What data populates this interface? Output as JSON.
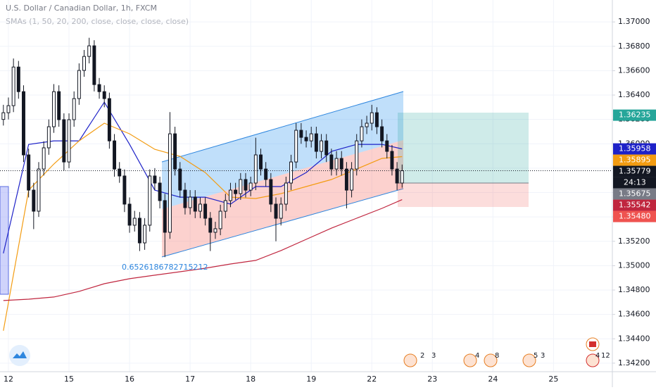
{
  "chart_data": {
    "type": "candlestick",
    "title": "U.S. Dollar / Canadian Dollar, 1h, FXCM",
    "subtitle": "SMAs (1, 50, 20, 200, close, close, close, close)",
    "x": [
      0,
      1,
      2,
      3,
      4,
      5,
      6,
      7,
      8,
      9,
      10,
      11,
      12,
      13,
      14,
      15,
      16,
      17,
      18,
      19,
      20,
      21,
      22,
      23,
      24,
      25,
      26,
      27,
      28,
      29,
      30,
      31,
      32,
      33,
      34,
      35,
      36,
      37,
      38,
      39,
      40,
      41,
      42,
      43,
      44,
      45,
      46,
      47,
      48,
      49,
      50,
      51,
      52,
      53,
      54,
      55,
      56,
      57,
      58,
      59,
      60,
      61,
      62,
      63,
      64,
      65,
      66,
      67,
      68,
      69,
      70,
      71,
      72,
      73,
      74,
      75,
      76,
      77,
      78,
      79
    ],
    "open": [
      1.362,
      1.36255,
      1.36313,
      1.3663,
      1.36428,
      1.35909,
      1.3562,
      1.35447,
      1.35793,
      1.35967,
      1.3614,
      1.36428,
      1.36198,
      1.35851,
      1.36198,
      1.36371,
      1.36602,
      1.36717,
      1.36804,
      1.36486,
      1.36428,
      1.36371,
      1.36024,
      1.35793,
      1.35736,
      1.35505,
      1.35332,
      1.35389,
      1.35187,
      1.35332,
      1.35736,
      1.35678,
      1.35534,
      1.35274,
      1.36082,
      1.35793,
      1.3562,
      1.35476,
      1.35563,
      1.35447,
      1.35505,
      1.35389,
      1.35274,
      1.35303,
      1.35447,
      1.35534,
      1.3562,
      1.35591,
      1.35707,
      1.3562,
      1.35678,
      1.35909,
      1.35793,
      1.35707,
      1.35505,
      1.35389,
      1.35505,
      1.35678,
      1.35851,
      1.36111,
      1.36053,
      1.36024,
      1.36082,
      1.35938,
      1.36024,
      1.35909,
      1.35793,
      1.3588,
      1.35793,
      1.3562,
      1.35793,
      1.36024,
      1.3614,
      1.36169,
      1.36255,
      1.3614,
      1.36024,
      1.35938,
      1.35793,
      1.35678
    ],
    "high": [
      1.3632,
      1.3638,
      1.367,
      1.3668,
      1.3648,
      1.3596,
      1.3568,
      1.3585,
      1.3602,
      1.362,
      1.3649,
      1.3648,
      1.3625,
      1.3625,
      1.3643,
      1.3666,
      1.3677,
      1.3687,
      1.3685,
      1.3654,
      1.3648,
      1.3642,
      1.3608,
      1.3585,
      1.3579,
      1.3556,
      1.3545,
      1.3544,
      1.3539,
      1.3579,
      1.358,
      1.3573,
      1.3559,
      1.3626,
      1.3614,
      1.3585,
      1.3568,
      1.3562,
      1.3562,
      1.3556,
      1.3556,
      1.3544,
      1.3536,
      1.355,
      1.3559,
      1.3568,
      1.3568,
      1.3576,
      1.3576,
      1.3573,
      1.3605,
      1.3596,
      1.3585,
      1.3576,
      1.3556,
      1.3556,
      1.3573,
      1.3591,
      1.3617,
      1.3617,
      1.3611,
      1.3614,
      1.3614,
      1.3608,
      1.3608,
      1.3596,
      1.3594,
      1.3594,
      1.3585,
      1.3585,
      1.3608,
      1.362,
      1.3623,
      1.3632,
      1.363,
      1.362,
      1.3608,
      1.3599,
      1.3585,
      1.3583
    ],
    "low": [
      1.3615,
      1.362,
      1.3626,
      1.3637,
      1.3585,
      1.3556,
      1.353,
      1.354,
      1.3574,
      1.3591,
      1.3609,
      1.3614,
      1.3578,
      1.358,
      1.3614,
      1.3632,
      1.3655,
      1.3666,
      1.3643,
      1.3637,
      1.363,
      1.3596,
      1.3573,
      1.3568,
      1.3544,
      1.3527,
      1.3528,
      1.3512,
      1.3513,
      1.3528,
      1.3562,
      1.3547,
      1.3507,
      1.3522,
      1.3574,
      1.3556,
      1.3542,
      1.3542,
      1.3539,
      1.3539,
      1.3533,
      1.3512,
      1.3522,
      1.3525,
      1.3539,
      1.3548,
      1.3554,
      1.3554,
      1.3556,
      1.3557,
      1.3562,
      1.3574,
      1.3565,
      1.3544,
      1.352,
      1.3533,
      1.3545,
      1.3562,
      1.358,
      1.36,
      1.3597,
      1.3597,
      1.3588,
      1.3588,
      1.3585,
      1.3574,
      1.3574,
      1.3574,
      1.3547,
      1.3556,
      1.3574,
      1.3597,
      1.3608,
      1.3611,
      1.3608,
      1.3597,
      1.3588,
      1.3574,
      1.3562,
      1.3564
    ],
    "close": [
      1.36255,
      1.36313,
      1.3663,
      1.36428,
      1.35909,
      1.3562,
      1.35447,
      1.35793,
      1.35967,
      1.3614,
      1.36428,
      1.36198,
      1.35851,
      1.36198,
      1.36371,
      1.36602,
      1.36717,
      1.36804,
      1.36486,
      1.36428,
      1.36371,
      1.36024,
      1.35793,
      1.35736,
      1.35505,
      1.35332,
      1.35389,
      1.35187,
      1.35332,
      1.35736,
      1.35678,
      1.35534,
      1.35274,
      1.36082,
      1.35793,
      1.3562,
      1.35476,
      1.35563,
      1.35447,
      1.35505,
      1.35389,
      1.35274,
      1.35303,
      1.35447,
      1.35534,
      1.3562,
      1.35591,
      1.35707,
      1.3562,
      1.35678,
      1.35909,
      1.35793,
      1.35707,
      1.35505,
      1.35389,
      1.35505,
      1.35678,
      1.35851,
      1.36111,
      1.36053,
      1.36024,
      1.36082,
      1.35938,
      1.36024,
      1.35909,
      1.35793,
      1.3588,
      1.35793,
      1.3562,
      1.35793,
      1.36024,
      1.3614,
      1.36169,
      1.36255,
      1.3614,
      1.36024,
      1.35938,
      1.35793,
      1.35678,
      1.35779
    ],
    "up_color": "#ffffff",
    "down_color": "#131722",
    "series": [
      {
        "color": "#1e22c8",
        "x": [
          0,
          5,
          10,
          15,
          20,
          25,
          30,
          35,
          40,
          45,
          50,
          55,
          60,
          65,
          70,
          75,
          79
        ],
        "values": [
          1.35101,
          1.35995,
          1.36024,
          1.36024,
          1.36342,
          1.35995,
          1.3562,
          1.35562,
          1.35562,
          1.35505,
          1.35649,
          1.35649,
          1.35764,
          1.35938,
          1.35995,
          1.35995,
          1.35958
        ]
      },
      {
        "color": "#f39c12",
        "x": [
          0,
          5,
          10,
          15,
          20,
          25,
          30,
          35,
          40,
          45,
          50,
          55,
          60,
          65,
          70,
          75,
          79
        ],
        "values": [
          1.34466,
          1.3562,
          1.35834,
          1.36024,
          1.36169,
          1.36082,
          1.35955,
          1.35897,
          1.35764,
          1.35562,
          1.35551,
          1.35591,
          1.35649,
          1.35707,
          1.35793,
          1.3588,
          1.35895
        ]
      },
      {
        "color": "#c0263f",
        "x": [
          0,
          5,
          10,
          15,
          20,
          25,
          30,
          35,
          40,
          45,
          50,
          55,
          60,
          65,
          70,
          75,
          79
        ],
        "values": [
          1.34714,
          1.34725,
          1.34743,
          1.34789,
          1.34852,
          1.34893,
          1.34922,
          1.3495,
          1.34979,
          1.35014,
          1.35043,
          1.35124,
          1.35216,
          1.35308,
          1.35389,
          1.3547,
          1.35542
        ]
      }
    ],
    "xlim": [
      -0.67,
      120.66
    ],
    "xticks": [
      {
        "value": 1,
        "label": "12"
      },
      {
        "value": 13,
        "label": "15"
      },
      {
        "value": 25,
        "label": "16"
      },
      {
        "value": 37,
        "label": "17"
      },
      {
        "value": 49,
        "label": "18"
      },
      {
        "value": 61,
        "label": "19"
      },
      {
        "value": 73,
        "label": "22"
      },
      {
        "value": 85,
        "label": "23"
      },
      {
        "value": 97,
        "label": "24"
      },
      {
        "value": 109,
        "label": "25"
      }
    ],
    "ylim": [
      1.3413,
      1.3718
    ],
    "yticks": [
      {
        "value": 1.342,
        "label": "1.34200"
      },
      {
        "value": 1.344,
        "label": "1.34400"
      },
      {
        "value": 1.346,
        "label": "1.34600"
      },
      {
        "value": 1.348,
        "label": "1.34800"
      },
      {
        "value": 1.35,
        "label": "1.35000"
      },
      {
        "value": 1.352,
        "label": "1.35200"
      },
      {
        "value": 1.354,
        "label": "1.35400"
      },
      {
        "value": 1.356,
        "label": "1.35600"
      },
      {
        "value": 1.358,
        "label": "1.35800"
      },
      {
        "value": 1.36,
        "label": "1.36000"
      },
      {
        "value": 1.362,
        "label": "1.36200"
      },
      {
        "value": 1.364,
        "label": "1.36400"
      },
      {
        "value": 1.366,
        "label": "1.36600"
      },
      {
        "value": 1.368,
        "label": "1.36800"
      },
      {
        "value": 1.37,
        "label": "1.37000"
      }
    ],
    "grid": true,
    "price_tags": [
      {
        "value": 1.36235,
        "label": "1.36235",
        "color": "#26a69a"
      },
      {
        "value": 1.35958,
        "label": "1.35958",
        "color": "#1e22c8"
      },
      {
        "value": 1.35895,
        "label": "1.35895",
        "color": "#f39c12"
      },
      {
        "value": 1.35779,
        "label": "1.35779",
        "color": "#131722"
      },
      {
        "value": 1.35675,
        "label": "1.35675",
        "color": "#787b86"
      },
      {
        "value": 1.35542,
        "label": "1.35542",
        "color": "#c0263f"
      },
      {
        "value": 1.3548,
        "label": "1.35480",
        "color": "#ef5350"
      }
    ],
    "countdown": "24:13",
    "annotation": "0.6526186782715212",
    "events": [
      "2",
      "3",
      "4",
      "8",
      "5",
      "3",
      "4",
      "12"
    ]
  }
}
